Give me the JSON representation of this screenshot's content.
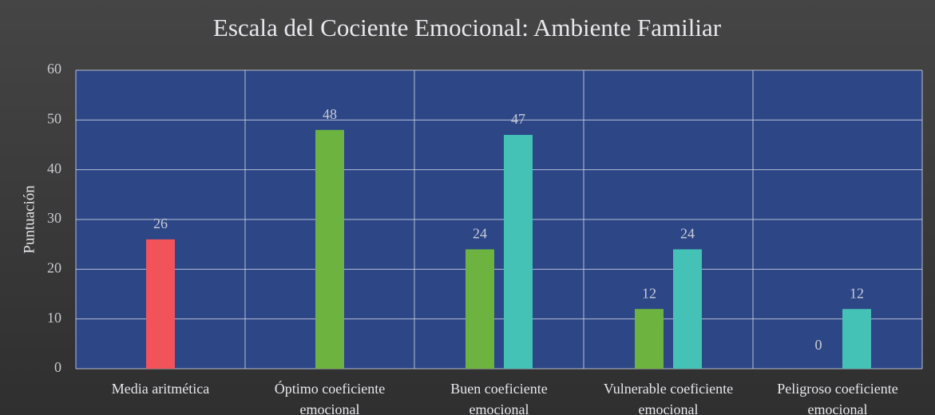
{
  "chart_data": {
    "type": "bar",
    "title": "Escala del Cociente Emocional: Ambiente Familiar",
    "y_label": "Puntuación",
    "categories": [
      "Media aritmética",
      "Óptimo coeficiente emocional",
      "Buen coeficiente emocional",
      "Vulnerable coeficiente emocional",
      "Peligroso coeficiente emocional"
    ],
    "series": [
      {
        "colors": [
          "#f2535b",
          "#6cb43f",
          "#6cb43f",
          "#6cb43f",
          "#6cb43f"
        ],
        "values": [
          26,
          48,
          24,
          12,
          0
        ]
      },
      {
        "color": "#44c2b6",
        "values": [
          null,
          null,
          47,
          24,
          12
        ]
      }
    ],
    "ylim": [
      0,
      60
    ],
    "yticks": [
      0,
      10,
      20,
      30,
      40,
      50,
      60
    ],
    "grid": true
  }
}
